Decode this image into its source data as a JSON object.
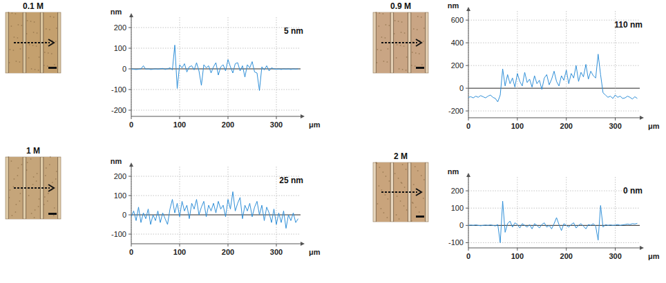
{
  "chart_data": [
    {
      "type": "line",
      "title": "0.1 M",
      "annotation": "5 nm",
      "x_label": "μm",
      "y_label": "nm",
      "color": "#2f8fd8",
      "grid": true,
      "xlim": [
        0,
        350
      ],
      "xticks": [
        0,
        100,
        200,
        300
      ],
      "ylim": [
        -230,
        250
      ],
      "yticks": [
        -200,
        -100,
        0,
        100,
        200
      ],
      "x": [
        0,
        5,
        10,
        15,
        20,
        25,
        30,
        35,
        40,
        45,
        50,
        55,
        60,
        65,
        70,
        75,
        80,
        85,
        90,
        95,
        100,
        105,
        110,
        115,
        120,
        125,
        130,
        135,
        140,
        145,
        150,
        155,
        160,
        165,
        170,
        175,
        180,
        185,
        190,
        195,
        200,
        205,
        210,
        215,
        220,
        225,
        230,
        235,
        240,
        245,
        250,
        255,
        260,
        265,
        270,
        275,
        280,
        285,
        290,
        295,
        300,
        305,
        310,
        315,
        320,
        325,
        330,
        335,
        340,
        345
      ],
      "values": [
        0,
        -2,
        -3,
        -2,
        0,
        15,
        -2,
        0,
        -3,
        -2,
        0,
        -2,
        0,
        2,
        -3,
        0,
        5,
        -5,
        115,
        -95,
        20,
        5,
        25,
        -15,
        10,
        15,
        -5,
        30,
        -10,
        -80,
        20,
        5,
        15,
        -20,
        10,
        30,
        -30,
        10,
        20,
        -10,
        45,
        10,
        -20,
        25,
        30,
        -10,
        15,
        -40,
        20,
        5,
        35,
        -15,
        -20,
        -105,
        10,
        -5,
        15,
        -10,
        5,
        0,
        -2,
        0,
        -3,
        0,
        -2,
        0,
        -3,
        0,
        -2,
        0
      ]
    },
    {
      "type": "line",
      "title": "0.9 M",
      "annotation": "110 nm",
      "x_label": "μm",
      "y_label": "nm",
      "color": "#2f8fd8",
      "grid": true,
      "xlim": [
        0,
        350
      ],
      "xticks": [
        0,
        100,
        200,
        300
      ],
      "ylim": [
        -260,
        680
      ],
      "yticks": [
        -200,
        0,
        200,
        400,
        600
      ],
      "x": [
        0,
        5,
        10,
        15,
        20,
        25,
        30,
        35,
        40,
        45,
        50,
        55,
        60,
        65,
        70,
        75,
        80,
        85,
        90,
        95,
        100,
        105,
        110,
        115,
        120,
        125,
        130,
        135,
        140,
        145,
        150,
        155,
        160,
        165,
        170,
        175,
        180,
        185,
        190,
        195,
        200,
        205,
        210,
        215,
        220,
        225,
        230,
        235,
        240,
        245,
        250,
        255,
        260,
        265,
        270,
        275,
        280,
        285,
        290,
        295,
        300,
        305,
        310,
        315,
        320,
        325,
        330,
        335,
        340,
        345
      ],
      "values": [
        -80,
        -75,
        -85,
        -70,
        -80,
        -65,
        -75,
        -85,
        -70,
        -60,
        -80,
        -90,
        -120,
        -60,
        170,
        20,
        120,
        40,
        90,
        10,
        130,
        60,
        20,
        140,
        50,
        80,
        10,
        110,
        40,
        70,
        -10,
        90,
        120,
        30,
        80,
        150,
        60,
        20,
        110,
        70,
        160,
        40,
        130,
        90,
        200,
        60,
        140,
        100,
        210,
        80,
        150,
        110,
        90,
        300,
        120,
        -40,
        -60,
        -80,
        -70,
        -90,
        -60,
        -80,
        -70,
        -90,
        -85,
        -70,
        -80,
        -95,
        -75,
        -90
      ]
    },
    {
      "type": "line",
      "title": "1 M",
      "annotation": "25 nm",
      "x_label": "μm",
      "y_label": "nm",
      "color": "#2f8fd8",
      "grid": true,
      "xlim": [
        0,
        350
      ],
      "xticks": [
        0,
        100,
        200,
        300
      ],
      "ylim": [
        -150,
        250
      ],
      "yticks": [
        -100,
        0,
        100,
        200
      ],
      "x": [
        0,
        5,
        10,
        15,
        20,
        25,
        30,
        35,
        40,
        45,
        50,
        55,
        60,
        65,
        70,
        75,
        80,
        85,
        90,
        95,
        100,
        105,
        110,
        115,
        120,
        125,
        130,
        135,
        140,
        145,
        150,
        155,
        160,
        165,
        170,
        175,
        180,
        185,
        190,
        195,
        200,
        205,
        210,
        215,
        220,
        225,
        230,
        235,
        240,
        245,
        250,
        255,
        260,
        265,
        270,
        275,
        280,
        285,
        290,
        295,
        300,
        305,
        310,
        315,
        320,
        325,
        330,
        335,
        340,
        345
      ],
      "values": [
        -10,
        20,
        -30,
        40,
        -40,
        10,
        -20,
        30,
        -50,
        0,
        -30,
        20,
        -40,
        10,
        -20,
        -50,
        30,
        80,
        10,
        60,
        -10,
        70,
        20,
        50,
        -20,
        60,
        30,
        80,
        0,
        40,
        70,
        -10,
        50,
        20,
        60,
        10,
        70,
        30,
        50,
        -10,
        80,
        30,
        120,
        20,
        60,
        90,
        -20,
        50,
        20,
        60,
        -10,
        40,
        70,
        0,
        50,
        -30,
        40,
        10,
        -40,
        30,
        -50,
        10,
        -40,
        20,
        -70,
        0,
        -30,
        10,
        -40,
        -20
      ]
    },
    {
      "type": "line",
      "title": "2 M",
      "annotation": "0 nm",
      "x_label": "μm",
      "y_label": "nm",
      "color": "#2f8fd8",
      "grid": true,
      "xlim": [
        0,
        350
      ],
      "xticks": [
        0,
        100,
        200,
        300
      ],
      "ylim": [
        -130,
        280
      ],
      "yticks": [
        -100,
        0,
        100,
        200
      ],
      "x": [
        0,
        5,
        10,
        15,
        20,
        25,
        30,
        35,
        40,
        45,
        50,
        55,
        60,
        65,
        70,
        75,
        80,
        85,
        90,
        95,
        100,
        105,
        110,
        115,
        120,
        125,
        130,
        135,
        140,
        145,
        150,
        155,
        160,
        165,
        170,
        175,
        180,
        185,
        190,
        195,
        200,
        205,
        210,
        215,
        220,
        225,
        230,
        235,
        240,
        245,
        250,
        255,
        260,
        265,
        270,
        275,
        280,
        285,
        290,
        295,
        300,
        305,
        310,
        315,
        320,
        325,
        330,
        335,
        340,
        345
      ],
      "values": [
        0,
        2,
        0,
        3,
        0,
        -2,
        0,
        2,
        0,
        3,
        0,
        -3,
        5,
        -100,
        140,
        -40,
        10,
        25,
        -10,
        15,
        5,
        -15,
        10,
        0,
        -10,
        5,
        -20,
        10,
        0,
        -15,
        5,
        15,
        -10,
        0,
        -20,
        10,
        45,
        5,
        -30,
        10,
        0,
        -10,
        5,
        15,
        -15,
        0,
        10,
        -5,
        -20,
        5,
        0,
        10,
        -5,
        -85,
        115,
        -10,
        5,
        0,
        3,
        0,
        2,
        5,
        0,
        3,
        5,
        8,
        5,
        10,
        8,
        12
      ]
    }
  ]
}
